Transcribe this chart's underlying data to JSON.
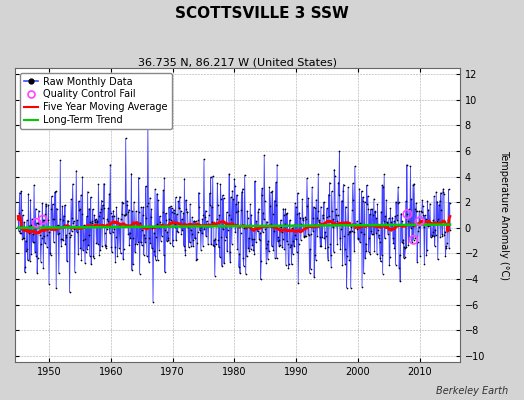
{
  "title": "SCOTTSVILLE 3 SSW",
  "subtitle": "36.735 N, 86.217 W (United States)",
  "ylabel": "Temperature Anomaly (°C)",
  "watermark": "Berkeley Earth",
  "xlim": [
    1944.5,
    2016.5
  ],
  "ylim": [
    -10.5,
    12.5
  ],
  "yticks": [
    -10,
    -8,
    -6,
    -4,
    -2,
    0,
    2,
    4,
    6,
    8,
    10,
    12
  ],
  "xticks": [
    1950,
    1960,
    1970,
    1980,
    1990,
    2000,
    2010
  ],
  "start_year": 1945,
  "end_year": 2014,
  "seed": 42,
  "bg_color": "#d4d4d4",
  "plot_bg_color": "#ffffff",
  "raw_line_color": "#4444ff",
  "raw_dot_color": "#000000",
  "moving_avg_color": "#ff0000",
  "trend_color": "#00cc00",
  "qc_fail_color": "#ff44ff",
  "shading_color": "#8888ff",
  "legend_entries": [
    "Raw Monthly Data",
    "Quality Control Fail",
    "Five Year Moving Average",
    "Long-Term Trend"
  ],
  "title_fontsize": 11,
  "subtitle_fontsize": 8,
  "ylabel_fontsize": 7,
  "tick_fontsize": 7,
  "legend_fontsize": 7
}
